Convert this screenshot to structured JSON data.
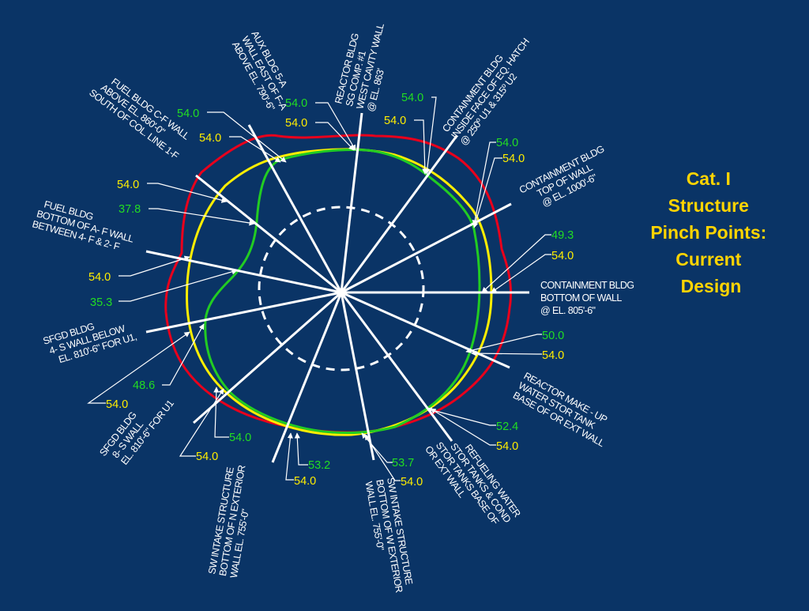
{
  "title": [
    "Cat. I",
    "Structure",
    "Pinch Points:",
    "Current",
    "Design"
  ],
  "colors": {
    "background": "#0a3466",
    "red_curve": "#e8001c",
    "yellow_curve": "#ffee00",
    "green_curve": "#22cc22",
    "yellow_value": "#ffee00",
    "green_value": "#22dd22",
    "title": "#ffd400"
  },
  "locations": [
    {
      "lines": [
        "AUX BLDG 5-A",
        "WALL EAST OF F-A",
        "ABOVE EL. 790'-6\""
      ]
    },
    {
      "lines": [
        "REACTOR BLDG",
        "SG COMP. #1",
        "WEST CAVITY WALL",
        "@ EL. 863'"
      ]
    },
    {
      "lines": [
        "CONTAINMENT BLDG",
        "INSIDE FACE OF EQ. HATCH",
        "@ 250º U1 & 315º U2"
      ]
    },
    {
      "lines": [
        "CONTAINMENT BLDG",
        "TOP OF WALL",
        "@ EL. 1000'-6\""
      ]
    },
    {
      "lines": [
        "CONTAINMENT BLDG",
        "BOTTOM OF WALL",
        "@ EL. 805'-6\""
      ]
    },
    {
      "lines": [
        "REACTOR MAKE - UP",
        "WATER STOR TANK",
        "BASE OF OR EXT WALL"
      ]
    },
    {
      "lines": [
        "REFUELING WATER",
        "STOR TANKS & COND",
        "STOR TANKS BASE OF",
        "OR EXT WALL"
      ]
    },
    {
      "lines": [
        "SW INTAKE STRUCTURE",
        "BOTTOM OF W EXTERIOR",
        "WALL EL. 755'-0\""
      ]
    },
    {
      "lines": [
        "SW INTAKE STRUCTURE",
        "BOTTOM OF N EXTERIOR",
        "WALL EL. 755'-0\""
      ]
    },
    {
      "lines": [
        "SFGD BLDG",
        "8- S WALL",
        "EL. 810'-6\" FOR U1"
      ]
    },
    {
      "lines": [
        "SFGD BLDG",
        "4- S WALL BELOW",
        "EL. 810'-6\" FOR U1,"
      ]
    },
    {
      "lines": [
        "FUEL BLDG",
        "BOTTOM OF A- F WALL",
        "BETWEEN 4- F & 2- F"
      ]
    },
    {
      "lines": [
        "FUEL BLDG C-F WALL",
        "ABOVE EL. 860'-0\"",
        "SOUTH OF COL. LINE 1-F"
      ]
    }
  ],
  "values": [
    {
      "text": "54.0",
      "color": "green"
    },
    {
      "text": "54.0",
      "color": "yellow"
    },
    {
      "text": "54.0",
      "color": "green"
    },
    {
      "text": "54.0",
      "color": "yellow"
    },
    {
      "text": "54.0",
      "color": "green"
    },
    {
      "text": "54.0",
      "color": "yellow"
    },
    {
      "text": "54.0",
      "color": "green"
    },
    {
      "text": "54.0",
      "color": "yellow"
    },
    {
      "text": "49.3",
      "color": "green"
    },
    {
      "text": "54.0",
      "color": "yellow"
    },
    {
      "text": "50.0",
      "color": "green"
    },
    {
      "text": "54.0",
      "color": "yellow"
    },
    {
      "text": "52.4",
      "color": "green"
    },
    {
      "text": "54.0",
      "color": "yellow"
    },
    {
      "text": "53.7",
      "color": "green"
    },
    {
      "text": "54.0",
      "color": "yellow"
    },
    {
      "text": "53.2",
      "color": "green"
    },
    {
      "text": "54.0",
      "color": "yellow"
    },
    {
      "text": "54.0",
      "color": "green"
    },
    {
      "text": "54.0",
      "color": "yellow"
    },
    {
      "text": "48.6",
      "color": "green"
    },
    {
      "text": "54.0",
      "color": "yellow"
    },
    {
      "text": "35.3",
      "color": "green"
    },
    {
      "text": "54.0",
      "color": "yellow"
    },
    {
      "text": "37.8",
      "color": "green"
    },
    {
      "text": "54.0",
      "color": "yellow"
    }
  ]
}
